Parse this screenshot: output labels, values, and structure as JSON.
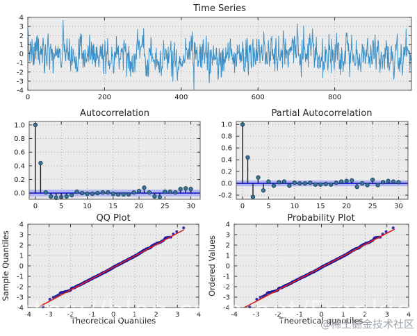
{
  "watermark": {
    "text": "https://blog.csdn.net/FrankieHello",
    "badge": "@稀土掘金技术社区"
  },
  "style": {
    "figure_bg": "#ffffff",
    "plot_bg": "#ebebeb",
    "grid_color": "#999999",
    "spine_color": "#5a5a5a",
    "tick_color": "#333333",
    "tick_label_color": "#1a1a1a",
    "ts_line_color": "#3a8fc6",
    "stem_color": "#1c1c1c",
    "marker_fill": "#3a7597",
    "marker_edge": "#1c4055",
    "zero_line_color": "#2222dd",
    "conf_band_color": "#a8aef2",
    "scatter_color": "#1a1aa0",
    "fit_line_color": "#dd2222"
  },
  "chart_data": [
    {
      "id": "ts",
      "type": "line",
      "title": "Time Series",
      "xlim": [
        0,
        1000
      ],
      "ylim": [
        -4,
        4
      ],
      "xticks": [
        0,
        200,
        400,
        600,
        800
      ],
      "yticks": [
        4,
        3,
        2,
        1,
        0,
        -1,
        -2,
        -3,
        -4
      ],
      "x_decimals": 0,
      "y_decimals": 0,
      "grid": true,
      "series_generator": {
        "model": "AR1",
        "phi": 0.45,
        "sigma": 1,
        "n": 1000,
        "seed": 7
      }
    },
    {
      "id": "acf",
      "type": "stem",
      "title": "Autocorrelation",
      "xlim": [
        -1.2,
        31.8
      ],
      "ylim": [
        -0.09,
        1.05
      ],
      "xticks": [
        0,
        5,
        10,
        15,
        20,
        25,
        30
      ],
      "yticks": [
        1.0,
        0.8,
        0.6,
        0.4,
        0.2,
        0.0
      ],
      "x_decimals": 0,
      "y_decimals": 1,
      "grid": true,
      "conf_band": 0.05,
      "values": [
        1.0,
        0.44,
        0.01,
        -0.05,
        -0.07,
        -0.06,
        -0.05,
        -0.03,
        0.02,
        0.0,
        -0.01,
        -0.01,
        0.0,
        0.01,
        0.01,
        -0.01,
        -0.02,
        -0.02,
        -0.02,
        0.01,
        0.03,
        0.08,
        0.01,
        -0.05,
        -0.06,
        0.02,
        0.02,
        0.01,
        0.06,
        0.07,
        0.06
      ]
    },
    {
      "id": "pacf",
      "type": "stem",
      "title": "Partial Autocorrelation",
      "xlim": [
        -1.2,
        31.8
      ],
      "ylim": [
        -0.27,
        1.05
      ],
      "xticks": [
        0,
        5,
        10,
        15,
        20,
        25,
        30
      ],
      "yticks": [
        1.0,
        0.8,
        0.6,
        0.4,
        0.2,
        0.0,
        -0.2
      ],
      "x_decimals": 0,
      "y_decimals": 1,
      "grid": true,
      "conf_band": 0.05,
      "values": [
        1.0,
        0.44,
        -0.23,
        0.1,
        -0.12,
        0.03,
        -0.04,
        0.02,
        0.03,
        -0.04,
        0.01,
        0.0,
        0.0,
        0.01,
        -0.02,
        -0.02,
        -0.01,
        -0.02,
        0.01,
        0.03,
        0.04,
        0.05,
        -0.06,
        0.0,
        -0.03,
        0.06,
        -0.03,
        0.02,
        0.04,
        0.03,
        0.02
      ]
    },
    {
      "id": "qq",
      "type": "scatter",
      "title": "QQ Plot",
      "xlabel": "Theoretical Quantiles",
      "ylabel": "Sample Quantiles",
      "xlim": [
        -4,
        4
      ],
      "ylim": [
        -4,
        4
      ],
      "xticks": [
        -4,
        -3,
        -2,
        -1,
        0,
        1,
        2,
        3,
        4
      ],
      "yticks": [
        4,
        3,
        2,
        1,
        0,
        -1,
        -2,
        -3,
        -4
      ],
      "x_decimals": 0,
      "y_decimals": 0,
      "grid": true,
      "fit_line_x": [
        -3.45,
        3.3
      ]
    },
    {
      "id": "prob",
      "type": "scatter",
      "title": "Probability Plot",
      "xlabel": "Theoretical quantiles",
      "ylabel": "Ordered Values",
      "xlim": [
        -4,
        4
      ],
      "ylim": [
        -4,
        4
      ],
      "xticks": [
        -4,
        -3,
        -2,
        -1,
        0,
        1,
        2,
        3,
        4
      ],
      "yticks": [
        4,
        3,
        2,
        1,
        0,
        -1,
        -2,
        -3,
        -4
      ],
      "x_decimals": 0,
      "y_decimals": 0,
      "grid": true,
      "fit_line_x": [
        -3.55,
        3.35
      ]
    }
  ]
}
